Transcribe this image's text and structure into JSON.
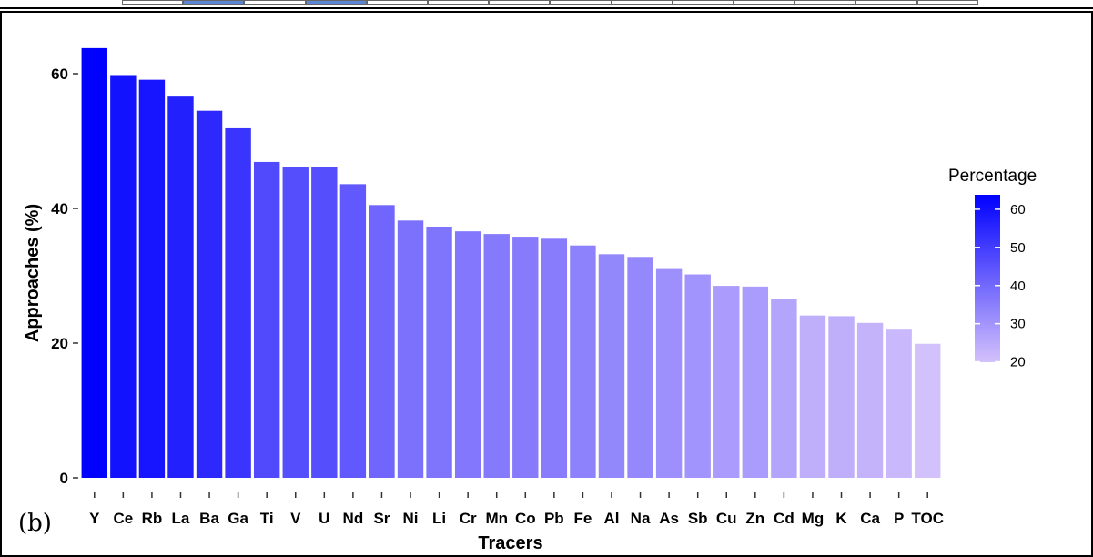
{
  "panel_label": "(b)",
  "top_strip": {
    "cells": [
      {
        "fill": "#ffffff"
      },
      {
        "fill": "#5b86d6"
      },
      {
        "fill": "#ffffff"
      },
      {
        "fill": "#5b86d6"
      },
      {
        "fill": "#ffffff"
      },
      {
        "fill": "#ffffff"
      },
      {
        "fill": "#ffffff"
      },
      {
        "fill": "#ffffff"
      },
      {
        "fill": "#ffffff"
      },
      {
        "fill": "#ffffff"
      },
      {
        "fill": "#ffffff"
      },
      {
        "fill": "#ffffff"
      },
      {
        "fill": "#ffffff"
      },
      {
        "fill": "#ffffff"
      }
    ]
  },
  "chart_data": {
    "type": "bar",
    "title": "",
    "xlabel": "Tracers",
    "ylabel": "Approaches (%)",
    "categories": [
      "Y",
      "Ce",
      "Rb",
      "La",
      "Ba",
      "Ga",
      "Ti",
      "V",
      "U",
      "Nd",
      "Sr",
      "Ni",
      "Li",
      "Cr",
      "Mn",
      "Co",
      "Pb",
      "Fe",
      "Al",
      "Na",
      "As",
      "Sb",
      "Cu",
      "Zn",
      "Cd",
      "Mg",
      "K",
      "Ca",
      "P",
      "TOC"
    ],
    "values": [
      63.8,
      59.8,
      59.1,
      56.6,
      54.5,
      51.9,
      46.9,
      46.1,
      46.1,
      43.6,
      40.5,
      38.2,
      37.3,
      36.6,
      36.2,
      35.8,
      35.5,
      34.5,
      33.2,
      32.8,
      31.0,
      30.2,
      28.5,
      28.4,
      26.5,
      24.1,
      24.0,
      23.0,
      22.0,
      19.9
    ],
    "ylim": [
      0,
      65
    ],
    "yticks": [
      0,
      20,
      40,
      60
    ],
    "grid": false,
    "legend": {
      "title": "Percentage",
      "position": "right",
      "ticks": [
        60,
        50,
        40,
        30,
        20
      ],
      "min": 19.9,
      "max": 63.8,
      "color_low": "#d3c1fb",
      "color_high": "#0000ff"
    }
  }
}
